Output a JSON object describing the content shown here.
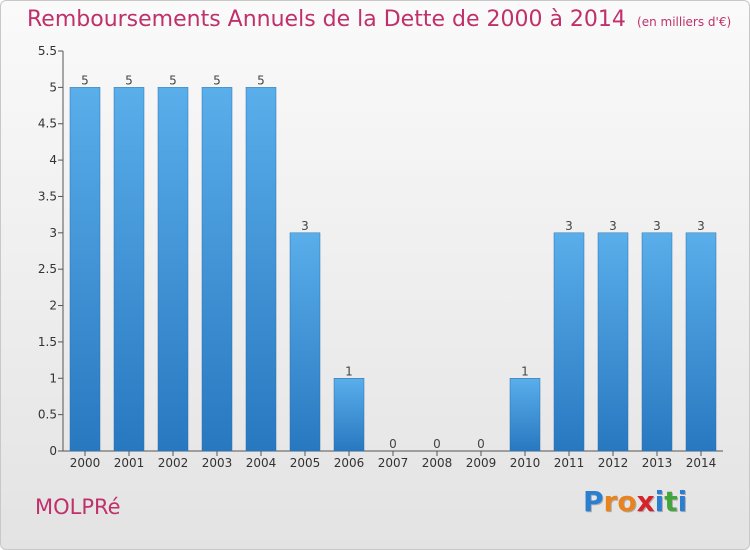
{
  "header": {
    "title": "Remboursements Annuels de la Dette de 2000 à 2014",
    "unit": "(en milliers d'€)"
  },
  "footer": {
    "commune": "MOLPRé",
    "logo_letters": [
      "P",
      "r",
      "o",
      "x",
      "i",
      "t",
      "i"
    ],
    "logo_colors": [
      "#2a7fd0",
      "#e8831e",
      "#e8831e",
      "#d6232b",
      "#2a7fd0",
      "#43a53c",
      "#2a7fd0"
    ]
  },
  "colors": {
    "bar_top": "#5aaeea",
    "bar_bottom": "#2878c0",
    "title": "#c0306a"
  },
  "chart_data": {
    "type": "bar",
    "title": "Remboursements Annuels de la Dette de 2000 à 2014",
    "categories": [
      "2000",
      "2001",
      "2002",
      "2003",
      "2004",
      "2005",
      "2006",
      "2007",
      "2008",
      "2009",
      "2010",
      "2011",
      "2012",
      "2013",
      "2014"
    ],
    "values": [
      5,
      5,
      5,
      5,
      5,
      3,
      1,
      0,
      0,
      0,
      1,
      3,
      3,
      3,
      3
    ],
    "value_labels": [
      "5",
      "5",
      "5",
      "5",
      "5",
      "3",
      "1",
      "0",
      "0",
      "0",
      "1",
      "3",
      "3",
      "3",
      "3"
    ],
    "ylim": [
      0,
      5.5
    ],
    "yticks": [
      0,
      0.5,
      1,
      1.5,
      2,
      2.5,
      3,
      3.5,
      4,
      4.5,
      5,
      5.5
    ],
    "ytick_labels": [
      "0",
      "0.5",
      "1",
      "1.5",
      "2",
      "2.5",
      "3",
      "3.5",
      "4",
      "4.5",
      "5",
      "5.5"
    ],
    "grid": false
  }
}
